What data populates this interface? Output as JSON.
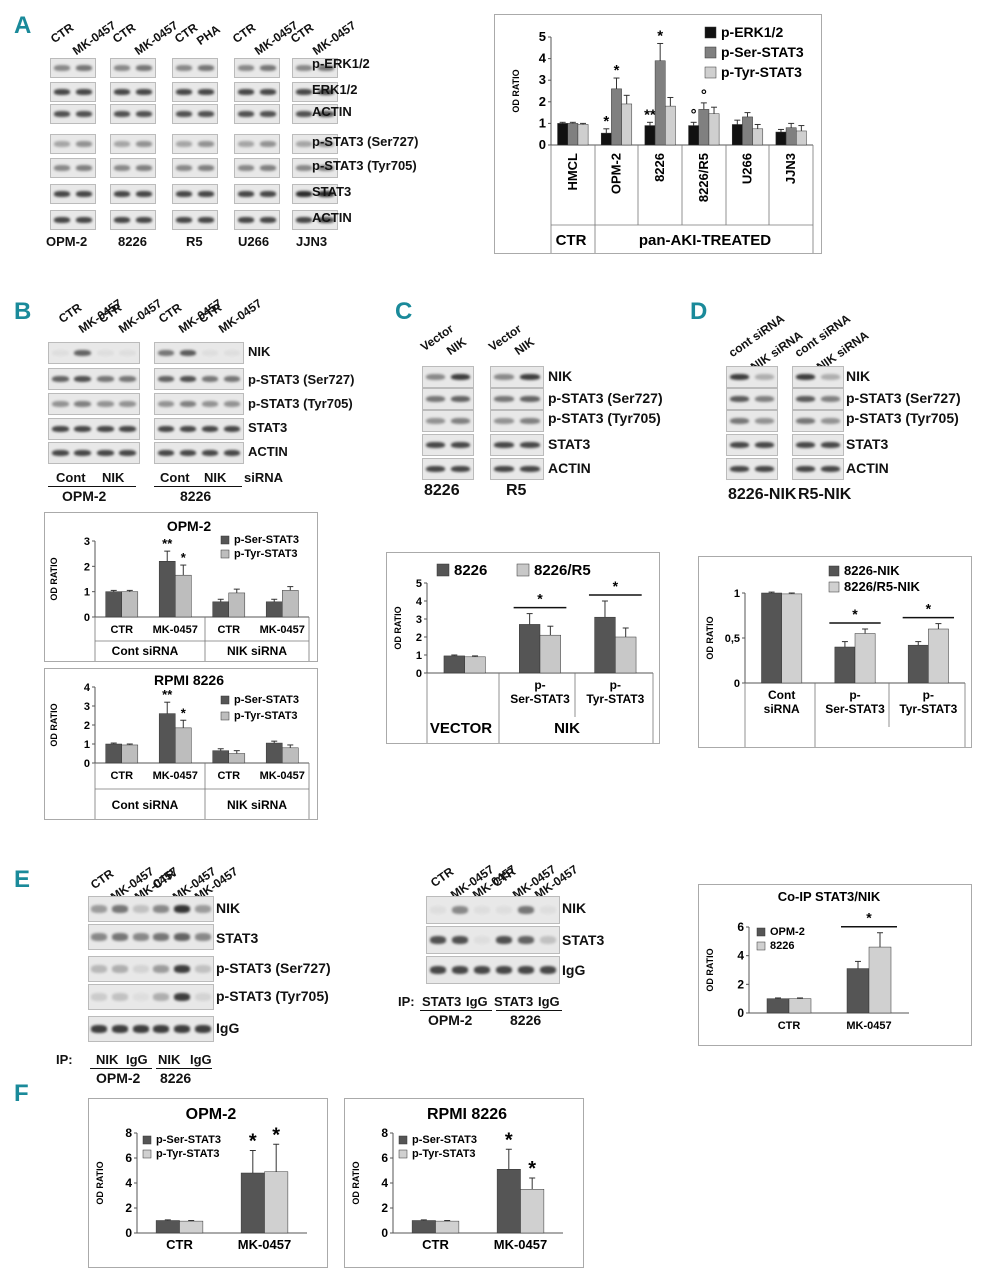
{
  "panels": {
    "A": "A",
    "B": "B",
    "C": "C",
    "D": "D",
    "E": "E",
    "F": "F"
  },
  "panel_A": {
    "lanes": [
      {
        "cell": "OPM-2",
        "lanes": [
          "CTR",
          "MK-0457"
        ]
      },
      {
        "cell": "8226",
        "lanes": [
          "CTR",
          "MK-0457"
        ]
      },
      {
        "cell": "R5",
        "lanes": [
          "CTR",
          "PHA"
        ]
      },
      {
        "cell": "U266",
        "lanes": [
          "CTR",
          "MK-0457"
        ]
      },
      {
        "cell": "JJN3",
        "lanes": [
          "CTR",
          "MK-0457"
        ]
      }
    ],
    "blot_labels": [
      "p-ERK1/2",
      "ERK1/2",
      "ACTIN",
      "p-STAT3 (Ser727)",
      "p-STAT3 (Tyr705)",
      "STAT3",
      "ACTIN"
    ]
  },
  "panel_B": {
    "lanes": [
      "CTR",
      "MK-0457",
      "CTR",
      "MK-0457"
    ],
    "blot_labels": [
      "NIK",
      "p-STAT3 (Ser727)",
      "p-STAT3 (Tyr705)",
      "STAT3",
      "ACTIN"
    ],
    "groups": [
      "Cont",
      "NIK"
    ],
    "sirna": "siRNA",
    "cells": [
      "OPM-2",
      "8226"
    ]
  },
  "panel_C": {
    "lanes": [
      "Vector",
      "NIK"
    ],
    "blot_labels": [
      "NIK",
      "p-STAT3 (Ser727)",
      "p-STAT3 (Tyr705)",
      "STAT3",
      "ACTIN"
    ],
    "cells": [
      "8226",
      "R5"
    ]
  },
  "panel_D": {
    "lanes": [
      "cont siRNA",
      "NIK siRNA"
    ],
    "blot_labels": [
      "NIK",
      "p-STAT3 (Ser727)",
      "p-STAT3 (Tyr705)",
      "STAT3",
      "ACTIN"
    ],
    "cells": [
      "8226-NIK",
      "R5-NIK"
    ]
  },
  "panel_E": {
    "lanes_left": [
      "CTR",
      "MK-0457",
      "MK-0457",
      "CTR",
      "MK-0457",
      "MK-0457"
    ],
    "blot_labels_left": [
      "NIK",
      "STAT3",
      "p-STAT3 (Ser727)",
      "p-STAT3 (Tyr705)",
      "IgG"
    ],
    "ip_left": {
      "prefix": "IP:",
      "groups": [
        "NIK",
        "IgG",
        "NIK",
        "IgG"
      ],
      "cells": [
        "OPM-2",
        "8226"
      ]
    },
    "lanes_right": [
      "CTR",
      "MK-0457",
      "MK-0457",
      "CTR",
      "MK-0457",
      "MK-0457"
    ],
    "blot_labels_right": [
      "NIK",
      "STAT3",
      "IgG"
    ],
    "ip_right": {
      "prefix": "IP:",
      "groups": [
        "STAT3",
        "IgG",
        "STAT3",
        "IgG"
      ],
      "cells": [
        "OPM-2",
        "8226"
      ]
    }
  },
  "chart_data": [
    {
      "id": "A",
      "type": "bar",
      "title": "",
      "ylabel": "OD RATIO",
      "ylim": [
        0,
        5
      ],
      "yticks": [
        0,
        1,
        2,
        3,
        4,
        5
      ],
      "categories": [
        "HMCL",
        "OPM-2",
        "8226",
        "8226/R5",
        "U266",
        "JJN3"
      ],
      "group_labels": [
        "CTR",
        "pan-AKI-TREATED"
      ],
      "series": [
        {
          "name": "p-ERK1/2",
          "color": "#111111",
          "values": [
            1.0,
            0.55,
            0.9,
            0.9,
            0.95,
            0.6
          ],
          "err": [
            0.05,
            0.2,
            0.15,
            0.15,
            0.2,
            0.12
          ]
        },
        {
          "name": "p-Ser-STAT3",
          "color": "#808080",
          "values": [
            1.0,
            2.6,
            3.9,
            1.65,
            1.3,
            0.8
          ],
          "err": [
            0.05,
            0.5,
            0.8,
            0.3,
            0.2,
            0.2
          ]
        },
        {
          "name": "p-Tyr-STAT3",
          "color": "#cfcfcf",
          "values": [
            0.95,
            1.9,
            1.8,
            1.45,
            0.75,
            0.65
          ],
          "err": [
            0.05,
            0.4,
            0.4,
            0.3,
            0.2,
            0.25
          ]
        }
      ],
      "annotations": [
        [
          "",
          "*",
          "**",
          "°",
          "",
          ""
        ],
        [
          "",
          "*",
          "*",
          "°",
          "",
          ""
        ]
      ]
    },
    {
      "id": "B1",
      "type": "bar",
      "title": "OPM-2",
      "ylabel": "OD RATIO",
      "ylim": [
        0,
        3
      ],
      "yticks": [
        0,
        1,
        2,
        3
      ],
      "categories": [
        "CTR",
        "MK-0457",
        "CTR",
        "MK-0457"
      ],
      "group_labels": [
        "Cont siRNA",
        "NIK siRNA"
      ],
      "series": [
        {
          "name": "p-Ser-STAT3",
          "color": "#555555",
          "values": [
            1.0,
            2.2,
            0.6,
            0.6
          ],
          "err": [
            0.05,
            0.4,
            0.1,
            0.1
          ]
        },
        {
          "name": "p-Tyr-STAT3",
          "color": "#bdbdbd",
          "values": [
            1.0,
            1.65,
            0.95,
            1.05
          ],
          "err": [
            0.05,
            0.4,
            0.15,
            0.15
          ]
        }
      ],
      "annotations": [
        [
          "",
          "**",
          "",
          ""
        ],
        [
          "",
          "*",
          "",
          ""
        ]
      ]
    },
    {
      "id": "B2",
      "type": "bar",
      "title": "RPMI 8226",
      "ylabel": "OD RATIO",
      "ylim": [
        0,
        4
      ],
      "yticks": [
        0,
        1,
        2,
        3,
        4
      ],
      "categories": [
        "CTR",
        "MK-0457",
        "CTR",
        "MK-0457"
      ],
      "group_labels": [
        "Cont siRNA",
        "NIK siRNA"
      ],
      "series": [
        {
          "name": "p-Ser-STAT3",
          "color": "#555555",
          "values": [
            1.0,
            2.6,
            0.65,
            1.05
          ],
          "err": [
            0.05,
            0.6,
            0.1,
            0.1
          ]
        },
        {
          "name": "p-Tyr-STAT3",
          "color": "#bdbdbd",
          "values": [
            0.95,
            1.85,
            0.5,
            0.8
          ],
          "err": [
            0.05,
            0.4,
            0.15,
            0.15
          ]
        }
      ],
      "annotations": [
        [
          "",
          "**",
          "",
          ""
        ],
        [
          "",
          "*",
          "",
          ""
        ]
      ]
    },
    {
      "id": "C",
      "type": "bar",
      "title": "",
      "ylabel": "OD RATIO",
      "ylim": [
        0,
        5
      ],
      "yticks": [
        0,
        1,
        2,
        3,
        4,
        5
      ],
      "categories": [
        "",
        "p-Ser-STAT3",
        "p-Tyr-STAT3"
      ],
      "group_labels": [
        "VECTOR",
        "NIK"
      ],
      "series": [
        {
          "name": "8226",
          "color": "#555555",
          "values": [
            0.95,
            2.7,
            3.1
          ],
          "err": [
            0.05,
            0.6,
            0.9
          ]
        },
        {
          "name": "8226/R5",
          "color": "#c8c8c8",
          "values": [
            0.9,
            2.1,
            2.0
          ],
          "err": [
            0.05,
            0.5,
            0.5
          ]
        }
      ],
      "sig": [
        "",
        "*",
        "*"
      ]
    },
    {
      "id": "D",
      "type": "bar",
      "title": "",
      "ylabel": "OD RATIO",
      "ylim": [
        0,
        1
      ],
      "yticks": [
        0,
        0.5,
        1
      ],
      "ytick_labels": [
        "0",
        "0,5",
        "1"
      ],
      "categories": [
        "Cont siRNA",
        "p-Ser-STAT3",
        "p-Tyr-STAT3"
      ],
      "group_labels": [
        "",
        "NIK siRNA"
      ],
      "series": [
        {
          "name": "8226-NIK",
          "color": "#555555",
          "values": [
            1.0,
            0.4,
            0.42
          ],
          "err": [
            0.01,
            0.06,
            0.04
          ]
        },
        {
          "name": "8226/R5-NIK",
          "color": "#d0d0d0",
          "values": [
            0.99,
            0.55,
            0.6
          ],
          "err": [
            0.01,
            0.05,
            0.06
          ]
        }
      ],
      "sig": [
        "",
        "*",
        "*"
      ]
    },
    {
      "id": "E",
      "type": "bar",
      "title": "Co-IP STAT3/NIK",
      "ylabel": "OD RATIO",
      "ylim": [
        0,
        6
      ],
      "yticks": [
        0,
        2,
        4,
        6
      ],
      "categories": [
        "CTR",
        "MK-0457"
      ],
      "series": [
        {
          "name": "OPM-2",
          "color": "#555555",
          "values": [
            1.0,
            3.1
          ],
          "err": [
            0.05,
            0.5
          ]
        },
        {
          "name": "8226",
          "color": "#d0d0d0",
          "values": [
            1.0,
            4.6
          ],
          "err": [
            0.05,
            1.0
          ]
        }
      ],
      "sig": [
        "",
        "*"
      ]
    },
    {
      "id": "F1",
      "type": "bar",
      "title": "OPM-2",
      "ylabel": "OD RATIO",
      "ylim": [
        0,
        8
      ],
      "yticks": [
        0,
        2,
        4,
        6,
        8
      ],
      "categories": [
        "CTR",
        "MK-0457"
      ],
      "series": [
        {
          "name": "p-Ser-STAT3",
          "color": "#555555",
          "values": [
            1.0,
            4.8
          ],
          "err": [
            0.05,
            1.8
          ]
        },
        {
          "name": "p-Tyr-STAT3",
          "color": "#d0d0d0",
          "values": [
            0.95,
            4.9
          ],
          "err": [
            0.05,
            2.2
          ]
        }
      ],
      "annotations": [
        [
          "",
          "*"
        ],
        [
          "",
          "*"
        ]
      ]
    },
    {
      "id": "F2",
      "type": "bar",
      "title": "RPMI 8226",
      "ylabel": "OD RATIO",
      "ylim": [
        0,
        8
      ],
      "yticks": [
        0,
        2,
        4,
        6,
        8
      ],
      "categories": [
        "CTR",
        "MK-0457"
      ],
      "series": [
        {
          "name": "p-Ser-STAT3",
          "color": "#555555",
          "values": [
            1.0,
            5.1
          ],
          "err": [
            0.05,
            1.6
          ]
        },
        {
          "name": "p-Tyr-STAT3",
          "color": "#d0d0d0",
          "values": [
            0.95,
            3.5
          ],
          "err": [
            0.05,
            0.9
          ]
        }
      ],
      "annotations": [
        [
          "",
          "*"
        ],
        [
          "",
          "*"
        ]
      ]
    }
  ]
}
